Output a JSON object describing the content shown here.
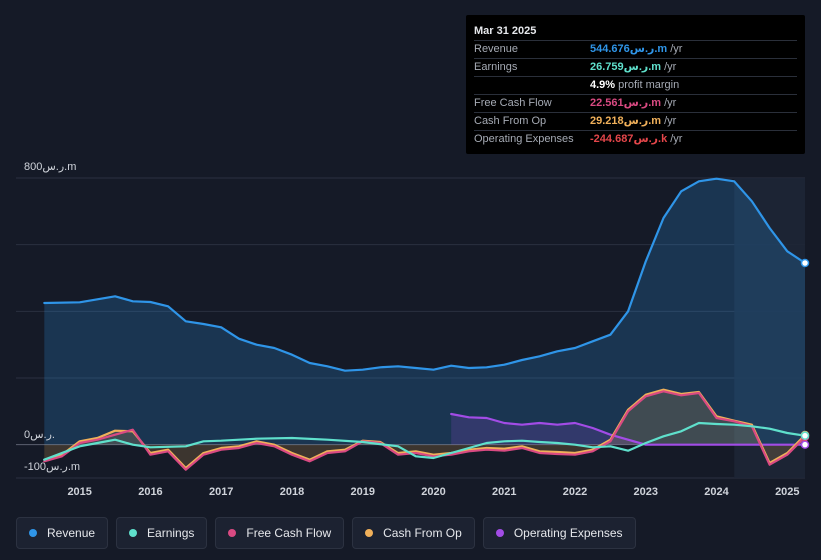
{
  "tooltip": {
    "date": "Mar 31 2025",
    "rows": [
      {
        "label": "Revenue",
        "value": "544.676ر.س.m",
        "suffix": "/yr",
        "color": "#2f95e8"
      },
      {
        "label": "Earnings",
        "value": "26.759ر.س.m",
        "suffix": "/yr",
        "color": "#5fe0cc"
      },
      {
        "label": "",
        "value": "4.9%",
        "suffix": "profit margin",
        "color": "#ffffff"
      },
      {
        "label": "Free Cash Flow",
        "value": "22.561ر.س.m",
        "suffix": "/yr",
        "color": "#d94a82"
      },
      {
        "label": "Cash From Op",
        "value": "29.218ر.س.m",
        "suffix": "/yr",
        "color": "#f0b05a"
      },
      {
        "label": "Operating Expenses",
        "value": "-244.687ر.س.k",
        "suffix": "/yr",
        "color": "#e4464a"
      }
    ]
  },
  "legend": [
    {
      "label": "Revenue",
      "color": "#2f95e8"
    },
    {
      "label": "Earnings",
      "color": "#5fe0cc"
    },
    {
      "label": "Free Cash Flow",
      "color": "#d94a82"
    },
    {
      "label": "Cash From Op",
      "color": "#f0b05a"
    },
    {
      "label": "Operating Expenses",
      "color": "#a24ce6"
    }
  ],
  "chart_data": {
    "type": "area",
    "title": "",
    "y_unit": "ر.س.m",
    "ylim": [
      -100,
      800
    ],
    "y_tick_labels": [
      {
        "value": 800,
        "label": "800ر.س.m"
      },
      {
        "value": 0,
        "label": "0ر.س."
      },
      {
        "value": -100,
        "label": "-100ر.س.m"
      }
    ],
    "x_tick_labels": [
      "2015",
      "2016",
      "2017",
      "2018",
      "2019",
      "2020",
      "2021",
      "2022",
      "2023",
      "2024",
      "2025"
    ],
    "x_ticks": [
      2015,
      2016,
      2017,
      2018,
      2019,
      2020,
      2021,
      2022,
      2023,
      2024,
      2025
    ],
    "xlim": [
      2014.1,
      2025.25
    ],
    "forecast_start": 2024.25,
    "series": [
      {
        "name": "Revenue",
        "color": "#2f95e8",
        "fill": true,
        "points": [
          [
            2014.5,
            425
          ],
          [
            2015.0,
            427
          ],
          [
            2015.5,
            445
          ],
          [
            2015.75,
            430
          ],
          [
            2016.0,
            428
          ],
          [
            2016.25,
            415
          ],
          [
            2016.5,
            370
          ],
          [
            2016.75,
            362
          ],
          [
            2017.0,
            352
          ],
          [
            2017.25,
            318
          ],
          [
            2017.5,
            300
          ],
          [
            2017.75,
            290
          ],
          [
            2018.0,
            270
          ],
          [
            2018.25,
            245
          ],
          [
            2018.5,
            235
          ],
          [
            2018.75,
            222
          ],
          [
            2019.0,
            225
          ],
          [
            2019.25,
            232
          ],
          [
            2019.5,
            235
          ],
          [
            2019.75,
            230
          ],
          [
            2020.0,
            225
          ],
          [
            2020.25,
            237
          ],
          [
            2020.5,
            230
          ],
          [
            2020.75,
            232
          ],
          [
            2021.0,
            240
          ],
          [
            2021.25,
            254
          ],
          [
            2021.5,
            265
          ],
          [
            2021.75,
            280
          ],
          [
            2022.0,
            290
          ],
          [
            2022.25,
            310
          ],
          [
            2022.5,
            330
          ],
          [
            2022.75,
            400
          ],
          [
            2023.0,
            550
          ],
          [
            2023.25,
            680
          ],
          [
            2023.5,
            760
          ],
          [
            2023.75,
            790
          ],
          [
            2024.0,
            798
          ],
          [
            2024.25,
            790
          ],
          [
            2024.5,
            730
          ],
          [
            2024.75,
            650
          ],
          [
            2025.0,
            580
          ],
          [
            2025.25,
            545
          ]
        ]
      },
      {
        "name": "Earnings",
        "color": "#5fe0cc",
        "fill": false,
        "points": [
          [
            2014.5,
            -45
          ],
          [
            2015.0,
            -5
          ],
          [
            2015.25,
            5
          ],
          [
            2015.5,
            15
          ],
          [
            2015.75,
            0
          ],
          [
            2016.0,
            -8
          ],
          [
            2016.5,
            -5
          ],
          [
            2016.75,
            10
          ],
          [
            2017.0,
            12
          ],
          [
            2017.5,
            18
          ],
          [
            2018.0,
            20
          ],
          [
            2018.5,
            15
          ],
          [
            2019.0,
            8
          ],
          [
            2019.5,
            -5
          ],
          [
            2019.75,
            -35
          ],
          [
            2020.0,
            -40
          ],
          [
            2020.25,
            -25
          ],
          [
            2020.5,
            -10
          ],
          [
            2020.75,
            5
          ],
          [
            2021.0,
            10
          ],
          [
            2021.25,
            12
          ],
          [
            2021.5,
            8
          ],
          [
            2021.75,
            5
          ],
          [
            2022.0,
            0
          ],
          [
            2022.25,
            -8
          ],
          [
            2022.5,
            -5
          ],
          [
            2022.75,
            -18
          ],
          [
            2023.0,
            5
          ],
          [
            2023.25,
            25
          ],
          [
            2023.5,
            40
          ],
          [
            2023.75,
            65
          ],
          [
            2024.0,
            62
          ],
          [
            2024.25,
            60
          ],
          [
            2024.5,
            55
          ],
          [
            2024.75,
            48
          ],
          [
            2025.0,
            35
          ],
          [
            2025.25,
            27
          ]
        ]
      },
      {
        "name": "Free Cash Flow",
        "color": "#d94a82",
        "fill": false,
        "points": [
          [
            2014.5,
            -50
          ],
          [
            2014.75,
            -35
          ],
          [
            2015.0,
            5
          ],
          [
            2015.25,
            15
          ],
          [
            2015.5,
            30
          ],
          [
            2015.75,
            45
          ],
          [
            2016.0,
            -30
          ],
          [
            2016.25,
            -20
          ],
          [
            2016.5,
            -75
          ],
          [
            2016.75,
            -30
          ],
          [
            2017.0,
            -15
          ],
          [
            2017.25,
            -10
          ],
          [
            2017.5,
            5
          ],
          [
            2017.75,
            -5
          ],
          [
            2018.0,
            -30
          ],
          [
            2018.25,
            -50
          ],
          [
            2018.5,
            -25
          ],
          [
            2018.75,
            -20
          ],
          [
            2019.0,
            10
          ],
          [
            2019.25,
            5
          ],
          [
            2019.5,
            -30
          ],
          [
            2019.75,
            -25
          ],
          [
            2020.0,
            -35
          ],
          [
            2020.25,
            -30
          ],
          [
            2020.5,
            -20
          ],
          [
            2020.75,
            -15
          ],
          [
            2021.0,
            -18
          ],
          [
            2021.25,
            -10
          ],
          [
            2021.5,
            -25
          ],
          [
            2021.75,
            -28
          ],
          [
            2022.0,
            -30
          ],
          [
            2022.25,
            -20
          ],
          [
            2022.5,
            10
          ],
          [
            2022.75,
            100
          ],
          [
            2023.0,
            145
          ],
          [
            2023.25,
            160
          ],
          [
            2023.5,
            148
          ],
          [
            2023.75,
            155
          ],
          [
            2024.0,
            80
          ],
          [
            2024.25,
            70
          ],
          [
            2024.5,
            55
          ],
          [
            2024.75,
            -60
          ],
          [
            2025.0,
            -30
          ],
          [
            2025.25,
            23
          ]
        ]
      },
      {
        "name": "Cash From Op",
        "color": "#f0b05a",
        "fill": true,
        "points": [
          [
            2014.5,
            -45
          ],
          [
            2014.75,
            -30
          ],
          [
            2015.0,
            10
          ],
          [
            2015.25,
            20
          ],
          [
            2015.5,
            42
          ],
          [
            2015.75,
            40
          ],
          [
            2016.0,
            -25
          ],
          [
            2016.25,
            -15
          ],
          [
            2016.5,
            -70
          ],
          [
            2016.75,
            -25
          ],
          [
            2017.0,
            -10
          ],
          [
            2017.25,
            -5
          ],
          [
            2017.5,
            10
          ],
          [
            2017.75,
            0
          ],
          [
            2018.0,
            -25
          ],
          [
            2018.25,
            -45
          ],
          [
            2018.5,
            -20
          ],
          [
            2018.75,
            -15
          ],
          [
            2019.0,
            12
          ],
          [
            2019.25,
            8
          ],
          [
            2019.5,
            -25
          ],
          [
            2019.75,
            -20
          ],
          [
            2020.0,
            -30
          ],
          [
            2020.25,
            -25
          ],
          [
            2020.5,
            -15
          ],
          [
            2020.75,
            -10
          ],
          [
            2021.0,
            -12
          ],
          [
            2021.25,
            -5
          ],
          [
            2021.5,
            -20
          ],
          [
            2021.75,
            -22
          ],
          [
            2022.0,
            -25
          ],
          [
            2022.25,
            -15
          ],
          [
            2022.5,
            15
          ],
          [
            2022.75,
            105
          ],
          [
            2023.0,
            150
          ],
          [
            2023.25,
            165
          ],
          [
            2023.5,
            152
          ],
          [
            2023.75,
            158
          ],
          [
            2024.0,
            85
          ],
          [
            2024.25,
            72
          ],
          [
            2024.5,
            60
          ],
          [
            2024.75,
            -55
          ],
          [
            2025.0,
            -25
          ],
          [
            2025.25,
            29
          ]
        ]
      },
      {
        "name": "Operating Expenses",
        "color": "#a24ce6",
        "fill": true,
        "points": [
          [
            2020.25,
            92
          ],
          [
            2020.5,
            82
          ],
          [
            2020.75,
            80
          ],
          [
            2021.0,
            65
          ],
          [
            2021.25,
            60
          ],
          [
            2021.5,
            65
          ],
          [
            2021.75,
            60
          ],
          [
            2022.0,
            65
          ],
          [
            2022.25,
            50
          ],
          [
            2022.5,
            30
          ],
          [
            2022.75,
            15
          ],
          [
            2023.0,
            0
          ],
          [
            2023.5,
            0
          ],
          [
            2024.0,
            0
          ],
          [
            2024.5,
            0
          ],
          [
            2025.0,
            0
          ],
          [
            2025.25,
            0
          ]
        ]
      }
    ]
  }
}
